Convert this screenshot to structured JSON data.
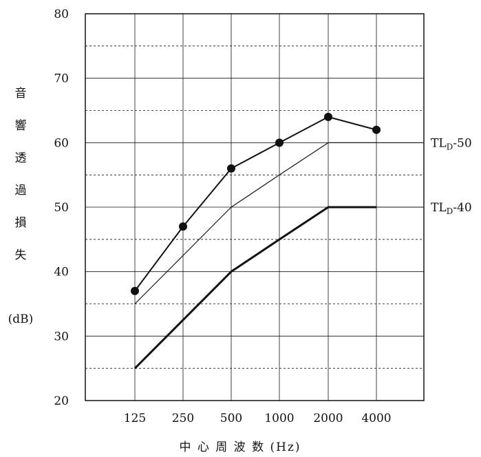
{
  "chart_data": {
    "type": "line",
    "title": "",
    "xlabel": "中 心 周 波 数 (Hz)",
    "ylabel_chars": [
      "音",
      "響",
      "透",
      "過",
      "損",
      "失"
    ],
    "ylabel_unit": "(dB)",
    "categories": [
      "125",
      "250",
      "500",
      "1000",
      "2000",
      "4000"
    ],
    "ylim": [
      20,
      80
    ],
    "y_ticks": [
      20,
      30,
      40,
      50,
      60,
      70,
      80
    ],
    "y_minor_dashed": [
      25,
      35,
      45,
      55,
      65,
      75
    ],
    "grid": true,
    "series": [
      {
        "name": "",
        "style": "markers",
        "values": [
          37,
          47,
          56,
          60,
          64,
          62
        ]
      },
      {
        "name": "TL_D-50",
        "label_main": "TL",
        "label_sub": "D",
        "label_tail": "-50",
        "style": "thin",
        "values": [
          35,
          42.5,
          50,
          55,
          60,
          60
        ]
      },
      {
        "name": "TL_D-40",
        "label_main": "TL",
        "label_sub": "D",
        "label_tail": "-40",
        "style": "thick",
        "values": [
          25,
          32.5,
          40,
          45,
          50,
          50
        ]
      }
    ]
  }
}
